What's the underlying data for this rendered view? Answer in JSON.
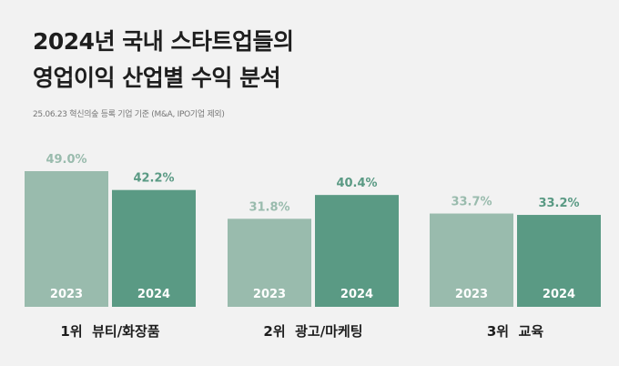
{
  "title_line1": "2024년 국내 스타트업들의",
  "title_line2": "영업이익 산업별 수익 분석",
  "subtitle": "25.06.23 혁신의숲 등록 기업 기준 (M&A, IPO기업 제외)",
  "colors": {
    "light": "#99bbad",
    "dark": "#5a9a84",
    "background": "#f2f2f2"
  },
  "chart_data": {
    "type": "bar",
    "categories": [
      "1위  뷰티/화장품",
      "2위  광고/마케팅",
      "3위  교육"
    ],
    "series": [
      {
        "name": "2023",
        "values": [
          49.0,
          31.8,
          33.7
        ],
        "labels": [
          "49.0%",
          "31.8%",
          "33.7%"
        ]
      },
      {
        "name": "2024",
        "values": [
          42.2,
          40.4,
          33.2
        ],
        "labels": [
          "42.2%",
          "40.4%",
          "33.2%"
        ]
      }
    ],
    "ylim": [
      0,
      49.0
    ]
  }
}
